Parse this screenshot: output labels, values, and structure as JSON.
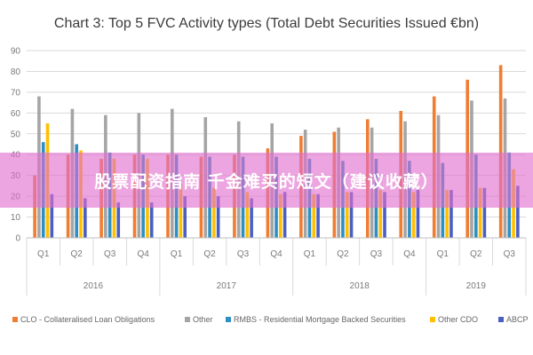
{
  "overlay": {
    "text": "股票配资指南 千金难买的短文（建议收藏）",
    "color": "#e06ecd"
  },
  "chart_data": {
    "type": "bar",
    "title": "Chart 3: Top 5 FVC Activity types (Total Debt Securities Issued €bn)",
    "xlabel": "",
    "ylabel": "",
    "ylim": [
      0,
      90
    ],
    "yticks": [
      0,
      10,
      20,
      30,
      40,
      50,
      60,
      70,
      80,
      90
    ],
    "grid": true,
    "legend_position": "bottom",
    "categories": [
      "Q1",
      "Q2",
      "Q3",
      "Q4",
      "Q1",
      "Q2",
      "Q3",
      "Q4",
      "Q1",
      "Q2",
      "Q3",
      "Q4",
      "Q1",
      "Q2",
      "Q3"
    ],
    "year_groups": [
      {
        "label": "2016",
        "count": 4
      },
      {
        "label": "2017",
        "count": 4
      },
      {
        "label": "2018",
        "count": 4
      },
      {
        "label": "2019",
        "count": 3
      }
    ],
    "series": [
      {
        "name": "CLO - Collateralised Loan Obligations",
        "color": "#ef7d32",
        "values": [
          30,
          40,
          38,
          40,
          40,
          39,
          40,
          43,
          49,
          51,
          57,
          61,
          68,
          76,
          83
        ]
      },
      {
        "name": "Other",
        "color": "#a5a5a5",
        "values": [
          68,
          62,
          59,
          60,
          62,
          58,
          56,
          55,
          52,
          53,
          53,
          56,
          59,
          66,
          67
        ]
      },
      {
        "name": "RMBS - Residential Mortgage Backed Securities",
        "color": "#2d8fc3",
        "values": [
          46,
          45,
          41,
          40,
          40,
          39,
          39,
          39,
          38,
          37,
          38,
          37,
          36,
          40,
          41
        ]
      },
      {
        "name": "Other CDO",
        "color": "#ffc000",
        "values": [
          55,
          42,
          38,
          38,
          26,
          24,
          22,
          21,
          21,
          22,
          23,
          22,
          23,
          24,
          33
        ]
      },
      {
        "name": "ABCP",
        "color": "#4a5fc1",
        "values": [
          21,
          19,
          17,
          17,
          20,
          20,
          19,
          22,
          21,
          22,
          22,
          23,
          23,
          24,
          25
        ]
      }
    ]
  }
}
